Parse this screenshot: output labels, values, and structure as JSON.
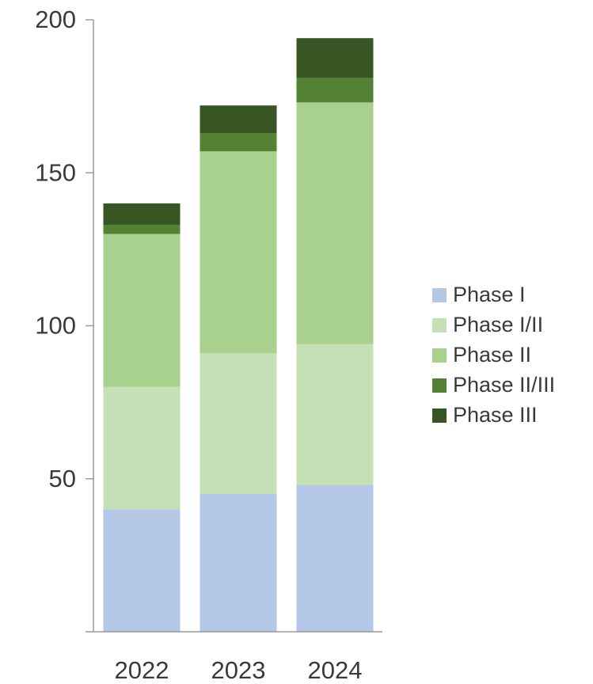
{
  "chart_data": {
    "type": "bar",
    "stacked": true,
    "title": "",
    "xlabel": "",
    "ylabel": "",
    "categories": [
      "2022",
      "2023",
      "2024"
    ],
    "ylim": [
      0,
      200
    ],
    "yticks": [
      50,
      100,
      150,
      200
    ],
    "grid": false,
    "legend_position": "right",
    "series": [
      {
        "name": "Phase I",
        "color": "#b4c7e7",
        "values": [
          40,
          45,
          48
        ]
      },
      {
        "name": "Phase I/II",
        "color": "#c5e0b4",
        "values": [
          40,
          46,
          46
        ]
      },
      {
        "name": "Phase II",
        "color": "#a9d18e",
        "values": [
          50,
          66,
          79
        ]
      },
      {
        "name": "Phase II/III",
        "color": "#548235",
        "values": [
          3,
          6,
          8
        ]
      },
      {
        "name": "Phase III",
        "color": "#375623",
        "values": [
          7,
          9,
          13
        ]
      }
    ]
  }
}
